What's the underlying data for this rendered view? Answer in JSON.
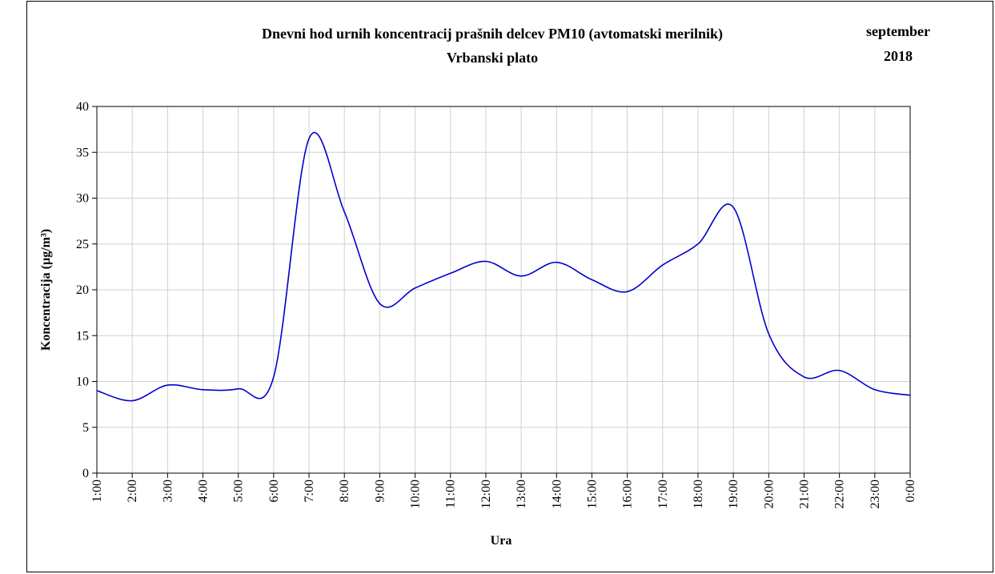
{
  "chart_data": {
    "type": "line",
    "title": "Dnevni hod urnih koncentracij prašnih delcev PM10 (avtomatski merilnik)",
    "subtitle": "Vrbanski plato",
    "month": "september",
    "year": "2018",
    "x_label": "Ura",
    "y_label": "Koncentracija (µg/m³)",
    "categories": [
      "1:00",
      "2:00",
      "3:00",
      "4:00",
      "5:00",
      "6:00",
      "7:00",
      "8:00",
      "9:00",
      "10:00",
      "11:00",
      "12:00",
      "13:00",
      "14:00",
      "15:00",
      "16:00",
      "17:00",
      "18:00",
      "19:00",
      "20:00",
      "21:00",
      "22:00",
      "23:00",
      "0:00"
    ],
    "values": [
      9.0,
      7.9,
      9.6,
      9.1,
      9.2,
      10.5,
      36.5,
      28.5,
      18.5,
      20.2,
      21.8,
      23.1,
      21.5,
      23.0,
      21.1,
      19.8,
      22.7,
      25.0,
      29.0,
      15.2,
      10.5,
      11.2,
      9.1,
      8.5
    ],
    "color": "#0000cc",
    "ylim": [
      0,
      40
    ],
    "yticks": [
      0,
      5,
      10,
      15,
      20,
      25,
      30,
      35,
      40
    ],
    "grid": true
  }
}
